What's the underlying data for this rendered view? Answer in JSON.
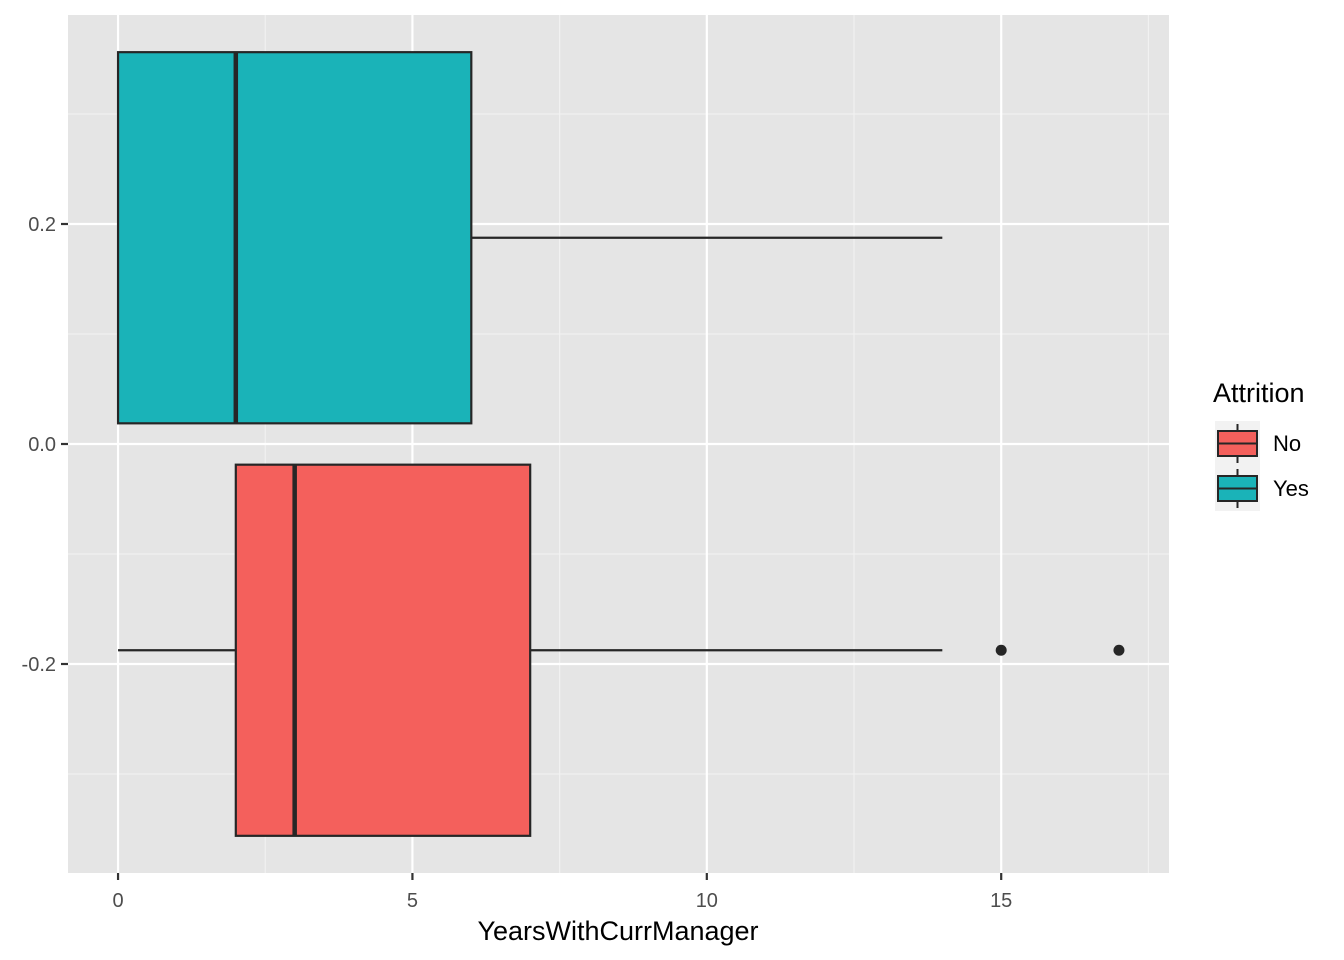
{
  "chart_data": {
    "type": "boxplot",
    "orientation": "horizontal",
    "xlabel": "YearsWithCurrManager",
    "ylabel": "",
    "xlim": [
      -0.85,
      17.85
    ],
    "ylim": [
      -0.39,
      0.39
    ],
    "x_ticks": [
      0,
      5,
      10,
      15
    ],
    "x_tick_labels": [
      "0",
      "5",
      "10",
      "15"
    ],
    "y_ticks": [
      -0.2,
      0.0,
      0.2
    ],
    "y_tick_labels": [
      "-0.2",
      "0.0",
      "0.2"
    ],
    "grid": true,
    "legend": {
      "title": "Attrition",
      "position": "right"
    },
    "series": [
      {
        "name": "No",
        "color": "#F4605C",
        "center_y": -0.1875,
        "half_height": 0.1687,
        "min": 0,
        "q1": 2,
        "median": 3,
        "q3": 7,
        "max": 14,
        "outliers": [
          15,
          17
        ]
      },
      {
        "name": "Yes",
        "color": "#1AB3B8",
        "center_y": 0.1875,
        "half_height": 0.1687,
        "min": 0,
        "q1": 0,
        "median": 2,
        "q3": 6,
        "max": 14,
        "outliers": []
      }
    ]
  }
}
